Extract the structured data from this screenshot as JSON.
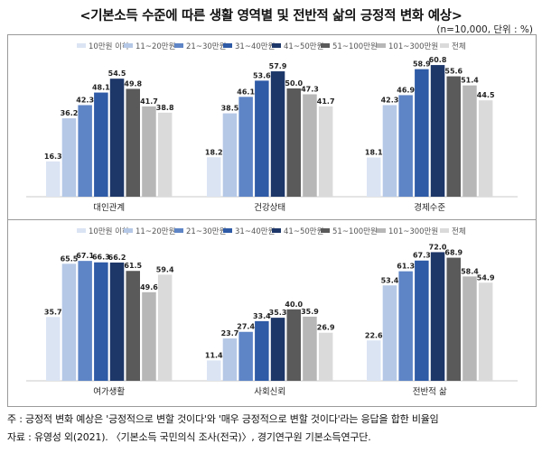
{
  "title": "<기본소득 수준에 따른 생활 영역별 및 전반적 삶의 긍정적 변화 예상>",
  "note": "(n=10,000, 단위 : %)",
  "footer": {
    "note": "주 : 긍정적 변화 예상은 '긍정적으로 변할 것이다'와 '매우 긍정적으로 변할 것이다'라는 응답을 합한 비율임",
    "source": "자료 : 유영성 외(2021). 〈기본소득 국민의식 조사(전국)〉, 경기연구원 기본소득연구단."
  },
  "colors": [
    "#dbe4f3",
    "#b5c8e6",
    "#5e85c6",
    "#2e5aa6",
    "#1d3769",
    "#5a5a5a",
    "#b7b7b7",
    "#dadada"
  ],
  "chart_data": [
    {
      "type": "bar",
      "series_names": [
        "10만원 이하",
        "11~20만원",
        "21~30만원",
        "31~40만원",
        "41~50만원",
        "51~100만원",
        "101~300만원",
        "전체"
      ],
      "categories": [
        "대인관계",
        "건강상태",
        "경제수준"
      ],
      "values": [
        [
          16.3,
          36.2,
          42.3,
          48.1,
          54.5,
          49.8,
          41.7,
          38.8
        ],
        [
          18.2,
          38.5,
          46.1,
          53.6,
          57.9,
          50.0,
          47.3,
          41.7
        ],
        [
          18.1,
          42.3,
          46.9,
          58.9,
          60.8,
          55.6,
          51.4,
          44.5
        ]
      ],
      "value_labels": [
        [
          "16.3",
          "36.2",
          "42.3",
          "48.1",
          "54.5",
          "49.8",
          "41.7",
          "38.8"
        ],
        [
          "18.2",
          "38.5",
          "46.1",
          "53.6",
          "57.9",
          "50.0",
          "47.3",
          "41.7"
        ],
        [
          "18.1",
          "42.3",
          "46.9",
          "58.9",
          "60.8",
          "55.6",
          "51.4",
          "44.5"
        ]
      ],
      "legend": "top",
      "ylim": [
        0,
        75
      ]
    },
    {
      "type": "bar",
      "series_names": [
        "10만원 이하",
        "11~20만원",
        "21~30만원",
        "31~40만원",
        "41~50만원",
        "51~100만원",
        "101~300만원",
        "전체"
      ],
      "categories": [
        "여가생활",
        "사회신뢰",
        "전반적 삶"
      ],
      "values": [
        [
          35.7,
          65.5,
          67.1,
          66.3,
          66.2,
          61.5,
          49.6,
          59.4
        ],
        [
          11.4,
          23.7,
          27.4,
          33.4,
          35.3,
          40.0,
          35.9,
          26.9
        ],
        [
          22.6,
          53.4,
          61.3,
          67.3,
          72.0,
          68.9,
          58.4,
          54.9
        ]
      ],
      "value_labels": [
        [
          "35.7",
          "65.5",
          "67.1",
          "66.3",
          "66.2",
          "61.5",
          "49.6",
          "59.4"
        ],
        [
          "11.4",
          "23.7",
          "27.4",
          "33.4",
          "35.3",
          "40.0",
          "35.9",
          "26.9"
        ],
        [
          "22.6",
          "53.4",
          "61.3",
          "67.3",
          "72.0",
          "68.9",
          "58.4",
          "54.9"
        ]
      ],
      "legend": "top",
      "ylim": [
        0,
        80
      ]
    }
  ]
}
